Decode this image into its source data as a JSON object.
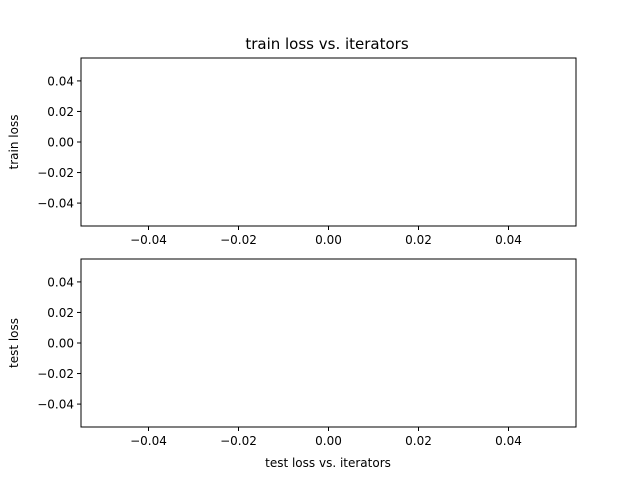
{
  "chart_data": [
    {
      "type": "line",
      "title": "train loss vs. iterators",
      "xlabel": "",
      "ylabel": "train loss",
      "xlim": [
        -0.055,
        0.055
      ],
      "ylim": [
        -0.055,
        0.055
      ],
      "xticks": [
        -0.04,
        -0.02,
        0.0,
        0.02,
        0.04
      ],
      "xtick_labels": [
        "−0.04",
        "−0.02",
        "0.00",
        "0.02",
        "0.04"
      ],
      "yticks": [
        0.04,
        0.02,
        0.0,
        -0.02,
        -0.04
      ],
      "ytick_labels": [
        "0.04",
        "0.02",
        "0.00",
        "−0.02",
        "−0.04"
      ],
      "grid": false,
      "series": [
        {
          "x": [],
          "y": []
        }
      ]
    },
    {
      "type": "line",
      "title": "",
      "xlabel": "test loss vs. iterators",
      "ylabel": "test loss",
      "xlim": [
        -0.055,
        0.055
      ],
      "ylim": [
        -0.055,
        0.055
      ],
      "xticks": [
        -0.04,
        -0.02,
        0.0,
        0.02,
        0.04
      ],
      "xtick_labels": [
        "−0.04",
        "−0.02",
        "0.00",
        "0.02",
        "0.04"
      ],
      "yticks": [
        0.04,
        0.02,
        0.0,
        -0.02,
        -0.04
      ],
      "ytick_labels": [
        "0.04",
        "0.02",
        "0.00",
        "−0.02",
        "−0.04"
      ],
      "grid": false,
      "series": [
        {
          "x": [],
          "y": []
        }
      ]
    }
  ]
}
